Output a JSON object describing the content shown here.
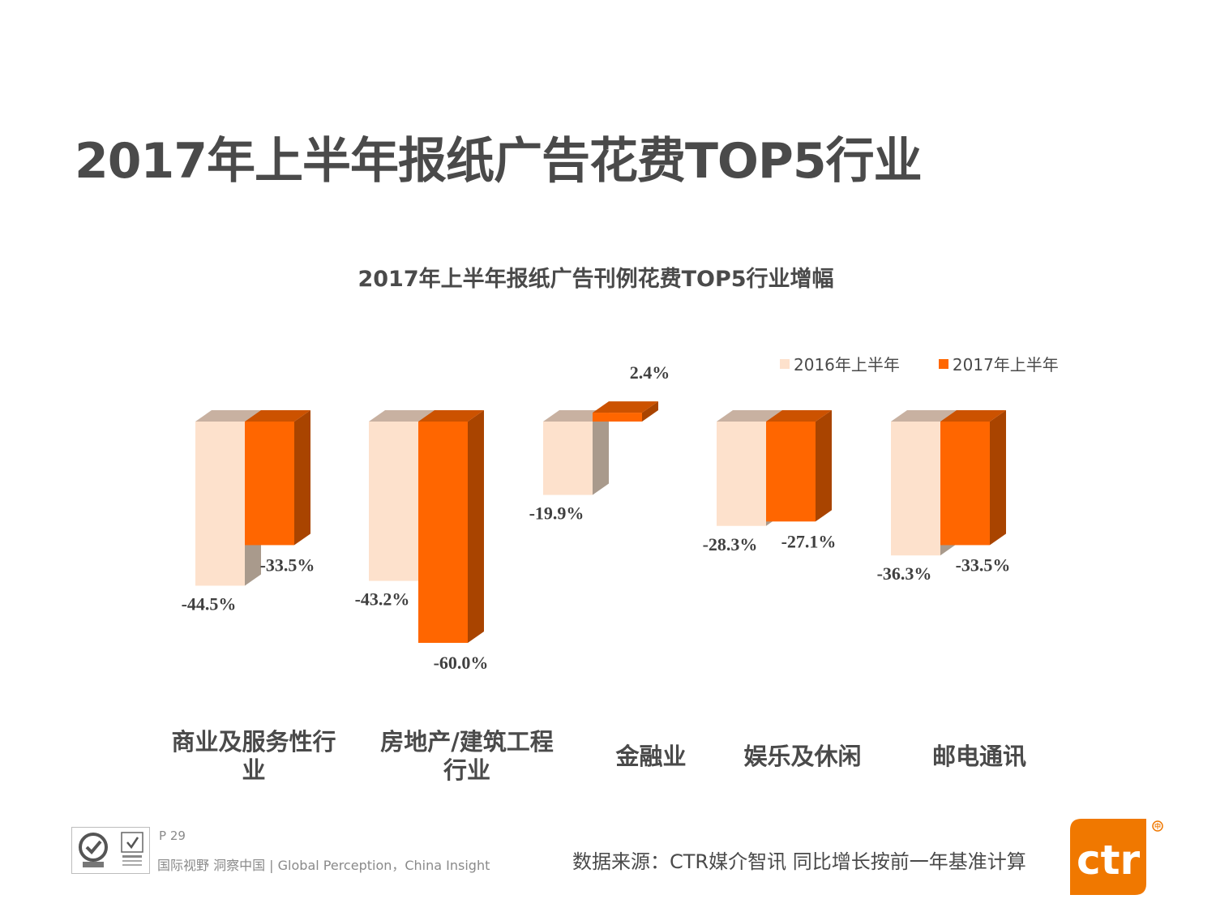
{
  "page": {
    "title": "2017年上半年报纸广告花费TOP5行业",
    "page_number": "P 29",
    "tagline": "国际视野  洞察中国 |  Global Perception，China Insight",
    "source": "数据来源：CTR媒介智讯    同比增长按前一年基准计算",
    "logo_text": "ctr"
  },
  "colors": {
    "s2016_front": "#fde1cc",
    "s2016_side": "#a99a8c",
    "s2016_top": "#c8b1a1",
    "s2017_front": "#ff6600",
    "s2017_side": "#a94400",
    "s2017_top": "#cc5200",
    "text": "#4a4a4a",
    "value_text": "#404040"
  },
  "chart_data": {
    "type": "bar",
    "title": "2017年上半年报纸广告刊例花费TOP5行业增幅",
    "categories": [
      "商业及服务性行业",
      "房地产/建筑工程行业",
      "金融业",
      "娱乐及休闲",
      "邮电通讯"
    ],
    "category_lines": [
      [
        "商业及服务性行",
        "业"
      ],
      [
        "房地产/建筑工程",
        "行业"
      ],
      [
        "金融业"
      ],
      [
        "娱乐及休闲"
      ],
      [
        "邮电通讯"
      ]
    ],
    "series": [
      {
        "name": "2016年上半年",
        "values": [
          -44.5,
          -43.2,
          -19.9,
          -28.3,
          -36.3
        ],
        "labels": [
          "-44.5%",
          "-43.2%",
          "-19.9%",
          "-28.3%",
          "-36.3%"
        ]
      },
      {
        "name": "2017年上半年",
        "values": [
          -33.5,
          -60.0,
          2.4,
          -27.1,
          -33.5
        ],
        "labels": [
          "-33.5%",
          "-60.0%",
          "2.4%",
          "-27.1%",
          "-33.5%"
        ]
      }
    ],
    "unit": "%",
    "legend_position": "top-right",
    "grid": false
  }
}
